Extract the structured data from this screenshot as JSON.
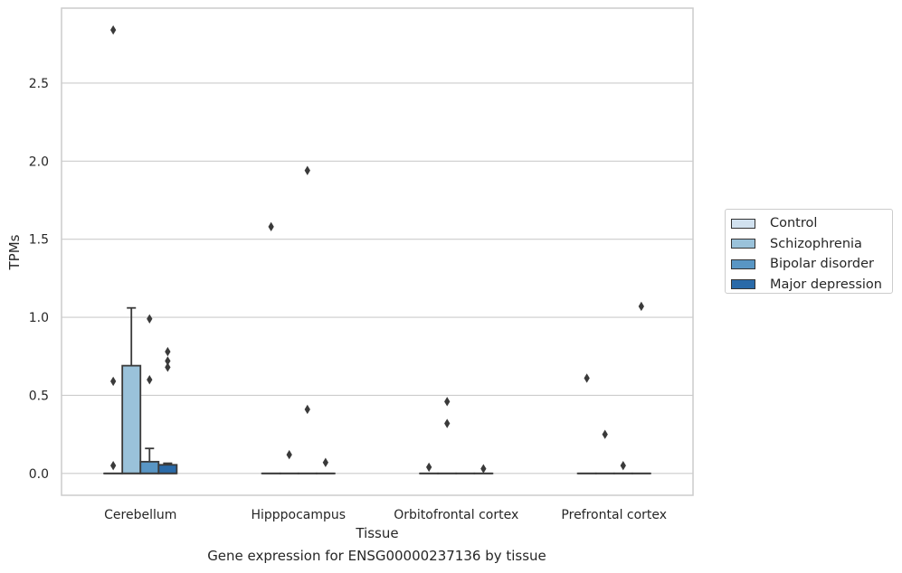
{
  "caption": "Gene expression for ENSG00000237136 by tissue",
  "chart_data": {
    "type": "box",
    "xlabel": "Tissue",
    "ylabel": "TPMs",
    "ylim": [
      -0.14,
      2.98
    ],
    "yticks": [
      0.0,
      0.5,
      1.0,
      1.5,
      2.0,
      2.5
    ],
    "ytick_labels": [
      "0.0",
      "0.5",
      "1.0",
      "1.5",
      "2.0",
      "2.5"
    ],
    "grid": "horizontal",
    "legend_position": "right",
    "categories": [
      "Cerebellum",
      "Hipppocampus",
      "Orbitofrontal cortex",
      "Prefrontal cortex"
    ],
    "series": [
      {
        "name": "Control",
        "color": "#d1e1ef",
        "boxes": [
          {
            "q1": 0.0,
            "median": 0.0,
            "q3": 0.0,
            "whisker_low": 0.0,
            "whisker_high": 0.0,
            "outliers": [
              0.05,
              0.59,
              2.84
            ]
          },
          {
            "q1": 0.0,
            "median": 0.0,
            "q3": 0.0,
            "whisker_low": 0.0,
            "whisker_high": 0.0,
            "outliers": [
              1.58
            ]
          },
          {
            "q1": 0.0,
            "median": 0.0,
            "q3": 0.0,
            "whisker_low": 0.0,
            "whisker_high": 0.0,
            "outliers": [
              0.04
            ]
          },
          {
            "q1": 0.0,
            "median": 0.0,
            "q3": 0.0,
            "whisker_low": 0.0,
            "whisker_high": 0.0,
            "outliers": [
              0.61
            ]
          }
        ]
      },
      {
        "name": "Schizophrenia",
        "color": "#9ac2da",
        "boxes": [
          {
            "q1": 0.0,
            "median": 0.0,
            "q3": 0.69,
            "whisker_low": 0.0,
            "whisker_high": 1.06,
            "outliers": []
          },
          {
            "q1": 0.0,
            "median": 0.0,
            "q3": 0.0,
            "whisker_low": 0.0,
            "whisker_high": 0.0,
            "outliers": [
              0.12
            ]
          },
          {
            "q1": 0.0,
            "median": 0.0,
            "q3": 0.0,
            "whisker_low": 0.0,
            "whisker_high": 0.0,
            "outliers": [
              0.32,
              0.46
            ]
          },
          {
            "q1": 0.0,
            "median": 0.0,
            "q3": 0.0,
            "whisker_low": 0.0,
            "whisker_high": 0.0,
            "outliers": [
              0.25
            ]
          }
        ]
      },
      {
        "name": "Bipolar disorder",
        "color": "#5996c4",
        "boxes": [
          {
            "q1": 0.0,
            "median": 0.0,
            "q3": 0.075,
            "whisker_low": 0.0,
            "whisker_high": 0.16,
            "outliers": [
              0.6,
              0.99
            ]
          },
          {
            "q1": 0.0,
            "median": 0.0,
            "q3": 0.0,
            "whisker_low": 0.0,
            "whisker_high": 0.0,
            "outliers": [
              0.41,
              1.94
            ]
          },
          {
            "q1": 0.0,
            "median": 0.0,
            "q3": 0.0,
            "whisker_low": 0.0,
            "whisker_high": 0.0,
            "outliers": []
          },
          {
            "q1": 0.0,
            "median": 0.0,
            "q3": 0.0,
            "whisker_low": 0.0,
            "whisker_high": 0.0,
            "outliers": [
              0.05
            ]
          }
        ]
      },
      {
        "name": "Major depression",
        "color": "#2a6aa8",
        "boxes": [
          {
            "q1": 0.0,
            "median": 0.0,
            "q3": 0.055,
            "whisker_low": 0.0,
            "whisker_high": 0.065,
            "outliers": [
              0.68,
              0.72,
              0.78
            ]
          },
          {
            "q1": 0.0,
            "median": 0.0,
            "q3": 0.0,
            "whisker_low": 0.0,
            "whisker_high": 0.0,
            "outliers": [
              0.07
            ]
          },
          {
            "q1": 0.0,
            "median": 0.0,
            "q3": 0.0,
            "whisker_low": 0.0,
            "whisker_high": 0.0,
            "outliers": [
              0.03
            ]
          },
          {
            "q1": 0.0,
            "median": 0.0,
            "q3": 0.0,
            "whisker_low": 0.0,
            "whisker_high": 0.0,
            "outliers": [
              1.07
            ]
          }
        ]
      }
    ]
  }
}
